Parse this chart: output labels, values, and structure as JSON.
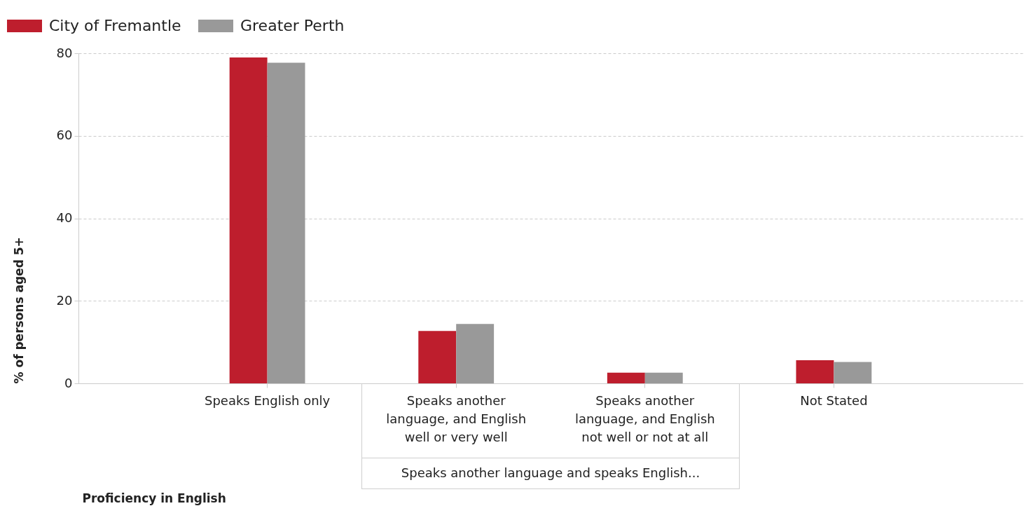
{
  "chart_data": {
    "type": "bar",
    "categories": [
      "Speaks English only",
      "Speaks another language, and English well or very well",
      "Speaks another language, and English not well or not at all",
      "Not Stated"
    ],
    "series": [
      {
        "name": "City of Fremantle",
        "color": "#be1e2d",
        "values": [
          79.0,
          12.7,
          2.6,
          5.6
        ]
      },
      {
        "name": "Greater Perth",
        "color": "#999999",
        "values": [
          77.7,
          14.4,
          2.6,
          5.2
        ]
      }
    ],
    "xlabel": "Proficiency in English",
    "ylabel": "% of persons aged 5+",
    "ylim": [
      0,
      80
    ],
    "yticks": [
      0,
      20,
      40,
      60,
      80
    ],
    "grid": "y",
    "legend": "top left",
    "annotations": [
      "Speaks another language and speaks English..."
    ]
  }
}
